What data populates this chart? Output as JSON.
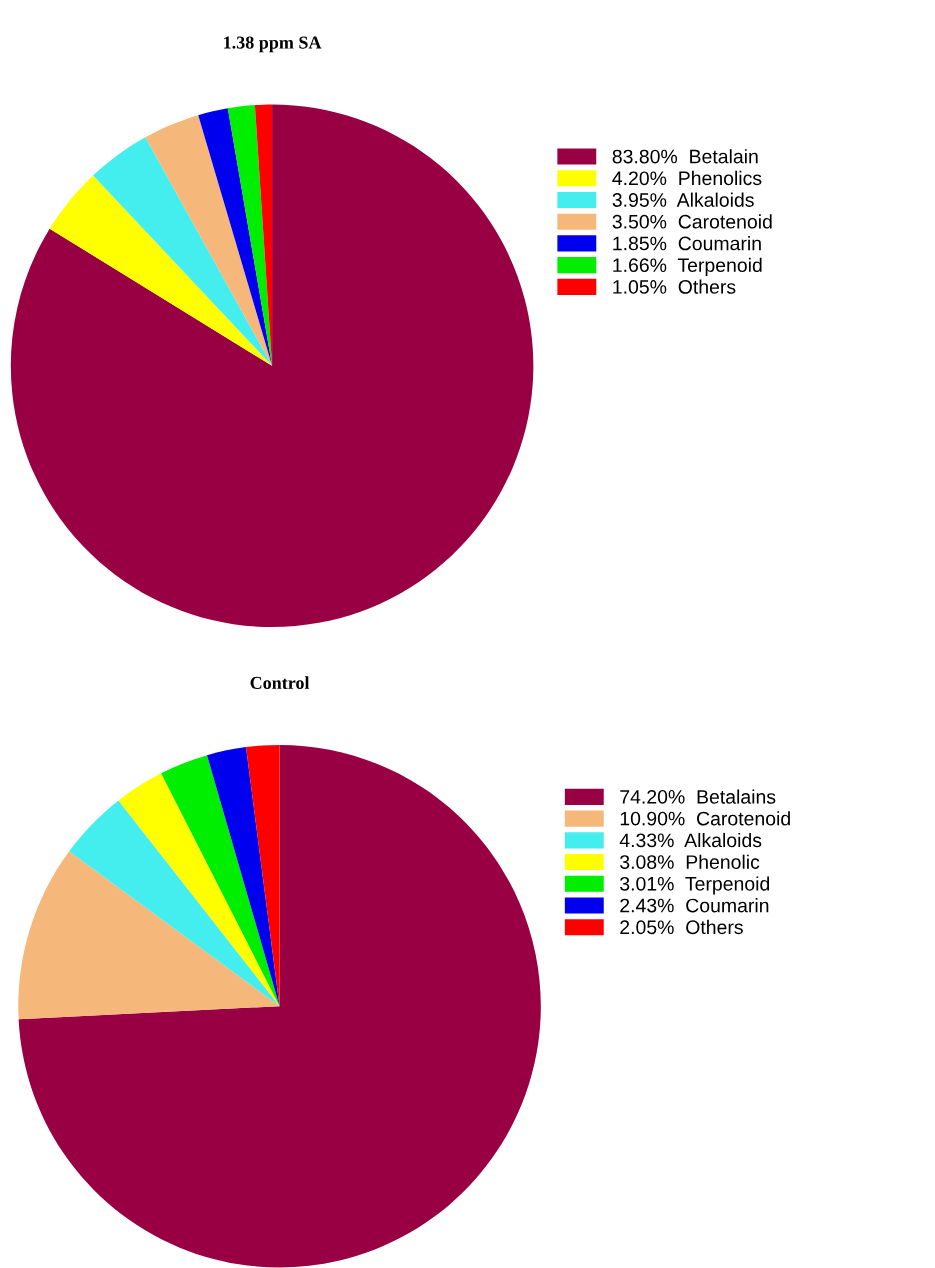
{
  "chart_data": [
    {
      "type": "pie",
      "title": "1.38 ppm SA",
      "categories": [
        "Betalain",
        "Phenolics",
        "Alkaloids",
        "Carotenoid",
        "Coumarin",
        "Terpenoid",
        "Others"
      ],
      "values": [
        83.8,
        4.2,
        3.95,
        3.5,
        1.85,
        1.66,
        1.05
      ],
      "value_labels": [
        "83.80%",
        "4.20%",
        "3.95%",
        "3.50%",
        "1.85%",
        "1.66%",
        "1.05%"
      ],
      "colors": [
        "#990044",
        "#ffff00",
        "#44eeee",
        "#f5b77a",
        "#0000ee",
        "#00ee00",
        "#ff0000"
      ],
      "legend": "right"
    },
    {
      "type": "pie",
      "title": "Control",
      "categories": [
        "Betalains",
        "Carotenoid",
        "Alkaloids",
        "Phenolic",
        "Terpenoid",
        "Coumarin",
        "Others"
      ],
      "values": [
        74.2,
        10.9,
        4.33,
        3.08,
        3.01,
        2.43,
        2.05
      ],
      "value_labels": [
        "74.20%",
        "10.90%",
        "4.33%",
        "3.08%",
        "3.01%",
        "2.43%",
        "2.05%"
      ],
      "colors": [
        "#990044",
        "#f5b77a",
        "#44eeee",
        "#ffff00",
        "#00ee00",
        "#0000ee",
        "#ff0000"
      ],
      "legend": "right"
    }
  ]
}
